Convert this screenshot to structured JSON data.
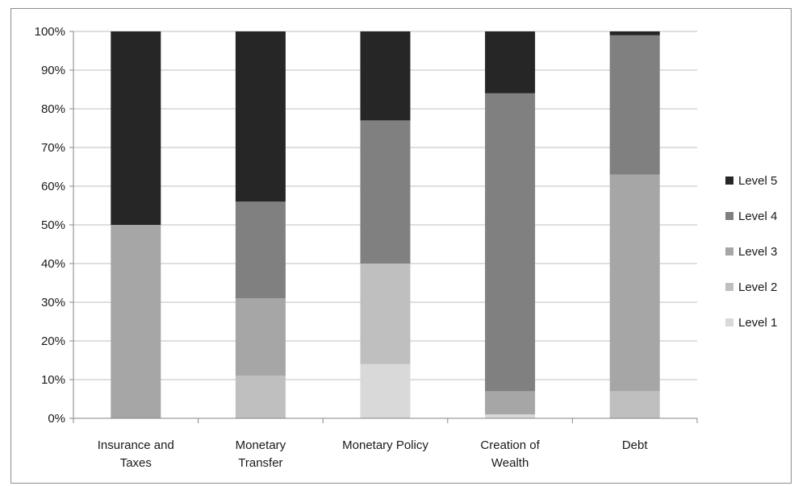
{
  "chart_data": {
    "type": "bar",
    "stacked": true,
    "percent": true,
    "categories": [
      [
        "Insurance and",
        "Taxes"
      ],
      [
        "Monetary",
        "Transfer"
      ],
      [
        "Monetary Policy"
      ],
      [
        "Creation of",
        "Wealth"
      ],
      [
        "Debt"
      ]
    ],
    "series": [
      {
        "name": "Level 1",
        "color": "#d9d9d9",
        "values": [
          0,
          0,
          14,
          1,
          0
        ]
      },
      {
        "name": "Level 2",
        "color": "#bfbfbf",
        "values": [
          0,
          11,
          26,
          0,
          7
        ]
      },
      {
        "name": "Level 3",
        "color": "#a6a6a6",
        "values": [
          50,
          20,
          0,
          6,
          56
        ]
      },
      {
        "name": "Level 4",
        "color": "#808080",
        "values": [
          0,
          25,
          37,
          77,
          36
        ]
      },
      {
        "name": "Level 5",
        "color": "#262626",
        "values": [
          50,
          44,
          23,
          16,
          1
        ]
      }
    ],
    "ylim": [
      0,
      100
    ],
    "yticks": [
      "0%",
      "10%",
      "20%",
      "30%",
      "40%",
      "50%",
      "60%",
      "70%",
      "80%",
      "90%",
      "100%"
    ],
    "grid": true,
    "legend_position": "right"
  }
}
